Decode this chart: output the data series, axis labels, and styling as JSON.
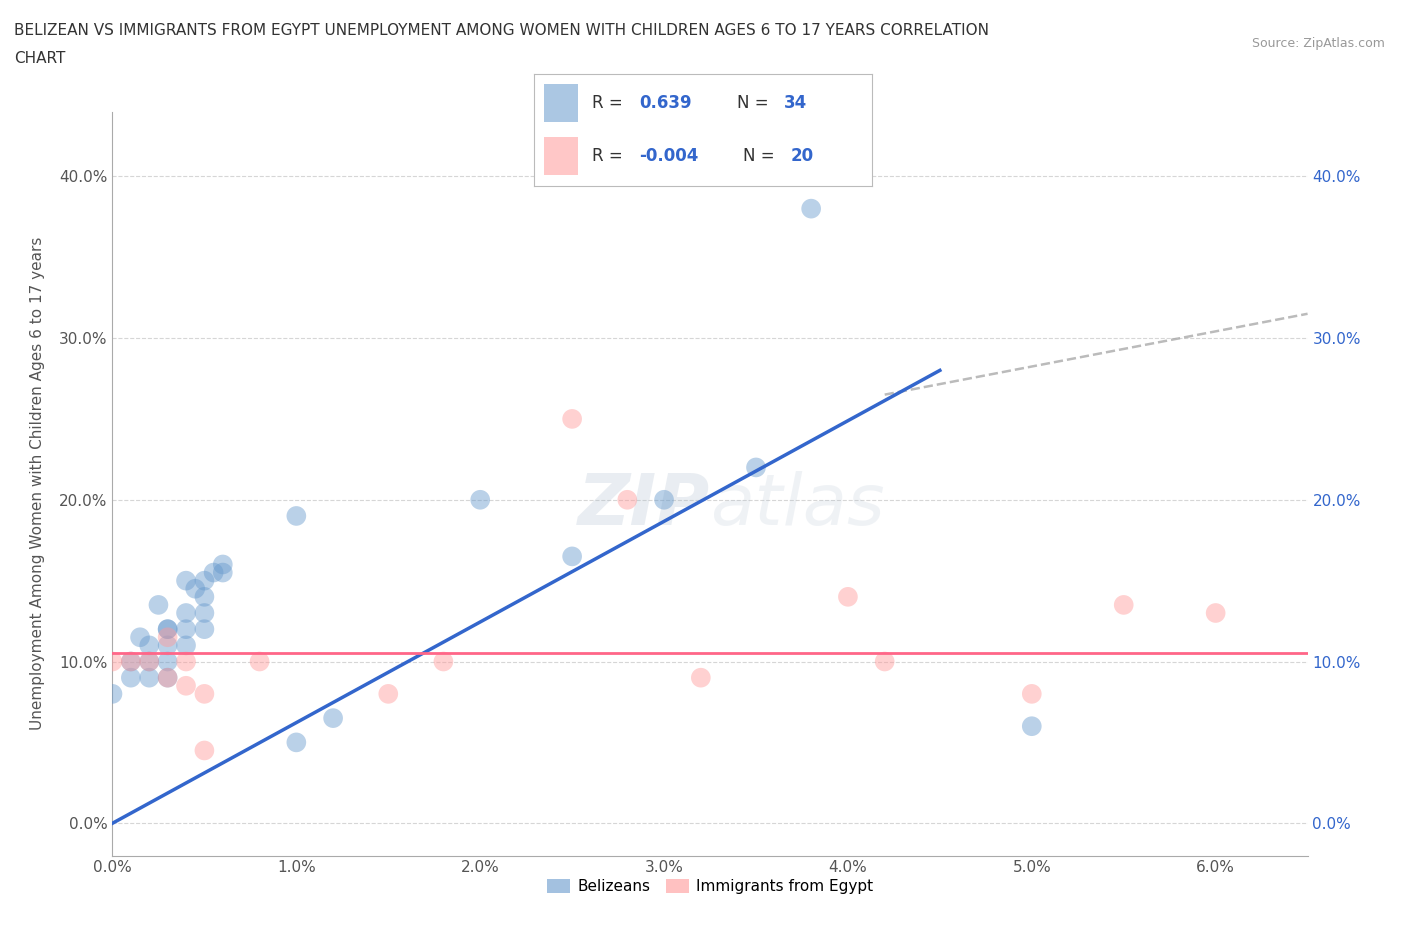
{
  "title_line1": "BELIZEAN VS IMMIGRANTS FROM EGYPT UNEMPLOYMENT AMONG WOMEN WITH CHILDREN AGES 6 TO 17 YEARS CORRELATION",
  "title_line2": "CHART",
  "source_text": "Source: ZipAtlas.com",
  "ylabel": "Unemployment Among Women with Children Ages 6 to 17 years",
  "xlim": [
    0.0,
    0.065
  ],
  "ylim": [
    -0.02,
    0.44
  ],
  "xticks": [
    0.0,
    0.01,
    0.02,
    0.03,
    0.04,
    0.05,
    0.06
  ],
  "xtick_labels": [
    "0.0%",
    "1.0%",
    "2.0%",
    "3.0%",
    "4.0%",
    "5.0%",
    "6.0%"
  ],
  "ytick_labels": [
    "0.0%",
    "10.0%",
    "20.0%",
    "30.0%",
    "40.0%"
  ],
  "yticks": [
    0.0,
    0.1,
    0.2,
    0.3,
    0.4
  ],
  "belizean_color": "#6699CC",
  "egypt_color": "#FF9999",
  "belizean_line_color": "#3366CC",
  "egypt_line_color": "#FF6688",
  "grid_color": "#CCCCCC",
  "watermark_color": "#C8D8E8",
  "belizean_x": [
    0.0,
    0.001,
    0.001,
    0.0015,
    0.002,
    0.002,
    0.002,
    0.0025,
    0.003,
    0.003,
    0.003,
    0.003,
    0.003,
    0.004,
    0.004,
    0.004,
    0.004,
    0.0045,
    0.005,
    0.005,
    0.005,
    0.005,
    0.0055,
    0.006,
    0.006,
    0.01,
    0.01,
    0.012,
    0.02,
    0.025,
    0.03,
    0.035,
    0.038,
    0.05
  ],
  "belizean_y": [
    0.08,
    0.09,
    0.1,
    0.115,
    0.1,
    0.09,
    0.11,
    0.135,
    0.12,
    0.12,
    0.11,
    0.1,
    0.09,
    0.15,
    0.13,
    0.12,
    0.11,
    0.145,
    0.15,
    0.14,
    0.13,
    0.12,
    0.155,
    0.16,
    0.155,
    0.19,
    0.05,
    0.065,
    0.2,
    0.165,
    0.2,
    0.22,
    0.38,
    0.06
  ],
  "egypt_x": [
    0.0,
    0.001,
    0.002,
    0.003,
    0.003,
    0.004,
    0.004,
    0.005,
    0.005,
    0.008,
    0.015,
    0.018,
    0.025,
    0.028,
    0.032,
    0.04,
    0.042,
    0.05,
    0.055,
    0.06
  ],
  "egypt_y": [
    0.1,
    0.1,
    0.1,
    0.115,
    0.09,
    0.1,
    0.085,
    0.08,
    0.045,
    0.1,
    0.08,
    0.1,
    0.25,
    0.2,
    0.09,
    0.14,
    0.1,
    0.08,
    0.135,
    0.13
  ],
  "blue_line_x0": 0.0,
  "blue_line_y0": 0.0,
  "blue_line_x1": 0.045,
  "blue_line_y1": 0.28,
  "dash_line_x0": 0.042,
  "dash_line_y0": 0.265,
  "dash_line_x1": 0.065,
  "dash_line_y1": 0.315,
  "pink_line_y": 0.105,
  "legend_belizean_label": "Belizeans",
  "legend_egypt_label": "Immigrants from Egypt",
  "right_tick_color": "#3366CC"
}
